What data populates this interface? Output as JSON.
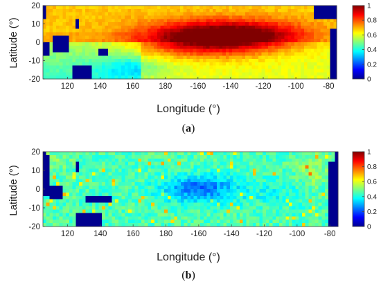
{
  "figure": {
    "panels": [
      {
        "caption_prefix": "(",
        "caption_letter": "a",
        "caption_suffix": ")",
        "ylabel": "Latitude (°)",
        "xlabel": "Longitude (°)"
      },
      {
        "caption_prefix": "(",
        "caption_letter": "b",
        "caption_suffix": ")",
        "ylabel": "Latitude (°)",
        "xlabel": "Longitude (°)"
      }
    ]
  },
  "chart_data": [
    {
      "type": "heatmap",
      "title": "",
      "xlabel": "Longitude (°)",
      "ylabel": "Latitude (°)",
      "xlim": [
        105,
        -75
      ],
      "ylim": [
        -20,
        20
      ],
      "x_ticks": [
        120,
        140,
        160,
        180,
        -160,
        -140,
        -120,
        -100,
        -80
      ],
      "y_ticks": [
        20,
        10,
        0,
        -10,
        -20
      ],
      "colorbar": {
        "range": [
          0,
          1
        ],
        "ticks": [
          0,
          0.2,
          0.4,
          0.6,
          0.8,
          1
        ],
        "colormap": "jet"
      },
      "grid": false,
      "legend": "colorbar-right",
      "colors": {
        "land_mask": "#00008f"
      }
    },
    {
      "type": "heatmap",
      "title": "",
      "xlabel": "Longitude (°)",
      "ylabel": "Latitude (°)",
      "xlim": [
        105,
        -75
      ],
      "ylim": [
        -20,
        20
      ],
      "x_ticks": [
        120,
        140,
        160,
        180,
        -160,
        -140,
        -120,
        -100,
        -80
      ],
      "y_ticks": [
        20,
        10,
        0,
        -10,
        -20
      ],
      "colorbar": {
        "range": [
          0,
          1
        ],
        "ticks": [
          0,
          0.2,
          0.4,
          0.6,
          0.8,
          1
        ],
        "colormap": "jet"
      },
      "grid": false,
      "legend": "colorbar-right",
      "colors": {
        "land_mask": "#00008f"
      }
    }
  ]
}
